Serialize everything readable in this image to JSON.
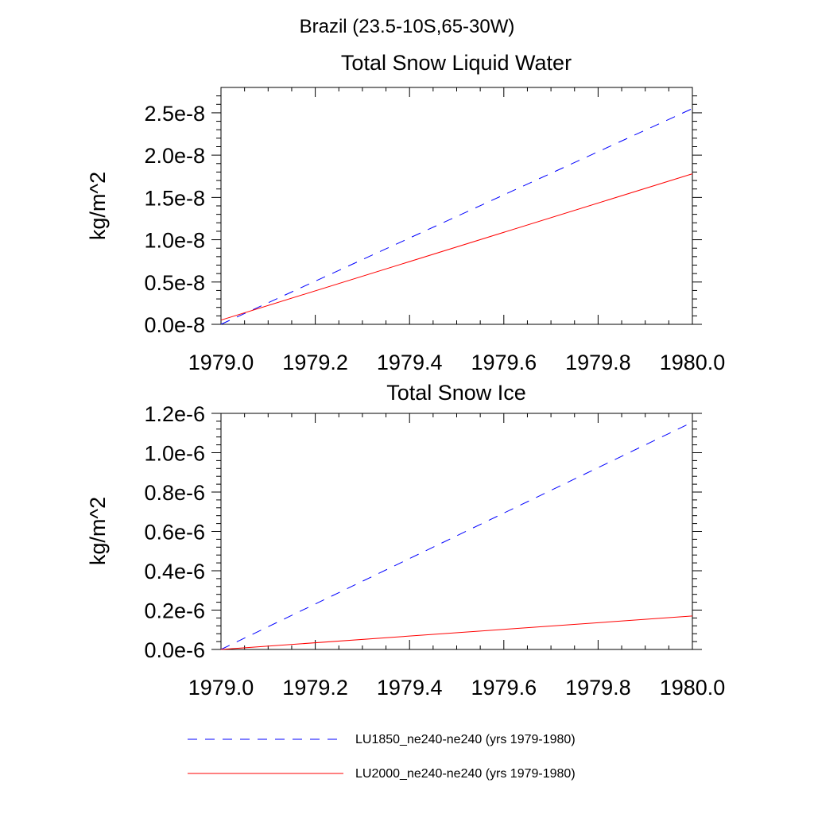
{
  "figure": {
    "title": "Brazil (23.5-10S,65-30W)"
  },
  "chart_data": [
    {
      "type": "line",
      "title": "Total Snow Liquid Water",
      "xlabel": "",
      "ylabel": "kg/m^2",
      "xlim": [
        1979.0,
        1980.0
      ],
      "ylim": [
        0.0,
        2.8e-08
      ],
      "xticks": [
        1979.0,
        1979.2,
        1979.4,
        1979.6,
        1979.8,
        1980.0
      ],
      "xtick_labels": [
        "1979.0",
        "1979.2",
        "1979.4",
        "1979.6",
        "1979.8",
        "1980.0"
      ],
      "yticks": [
        0.0,
        5e-09,
        1e-08,
        1.5e-08,
        2e-08,
        2.5e-08
      ],
      "ytick_labels": [
        "0.0e-8",
        "0.5e-8",
        "1.0e-8",
        "1.5e-8",
        "2.0e-8",
        "2.5e-8"
      ],
      "grid": false,
      "series": [
        {
          "name": "LU1850_ne240-ne240 (yrs 1979-1980)",
          "color": "#0000ff",
          "dash": "dashed",
          "x": [
            1979.0,
            1980.0
          ],
          "y": [
            0.0,
            2.55e-08
          ]
        },
        {
          "name": "LU2000_ne240-ne240 (yrs 1979-1980)",
          "color": "#ff0000",
          "dash": "solid",
          "x": [
            1979.0,
            1980.0
          ],
          "y": [
            5e-10,
            1.78e-08
          ]
        }
      ]
    },
    {
      "type": "line",
      "title": "Total Snow Ice",
      "xlabel": "",
      "ylabel": "kg/m^2",
      "xlim": [
        1979.0,
        1980.0
      ],
      "ylim": [
        0.0,
        1.2e-06
      ],
      "xticks": [
        1979.0,
        1979.2,
        1979.4,
        1979.6,
        1979.8,
        1980.0
      ],
      "xtick_labels": [
        "1979.0",
        "1979.2",
        "1979.4",
        "1979.6",
        "1979.8",
        "1980.0"
      ],
      "yticks": [
        0.0,
        2e-07,
        4e-07,
        6e-07,
        8e-07,
        1e-06,
        1.2e-06
      ],
      "ytick_labels": [
        "0.0e-6",
        "0.2e-6",
        "0.4e-6",
        "0.6e-6",
        "0.8e-6",
        "1.0e-6",
        "1.2e-6"
      ],
      "grid": false,
      "series": [
        {
          "name": "LU1850_ne240-ne240 (yrs 1979-1980)",
          "color": "#0000ff",
          "dash": "dashed",
          "x": [
            1979.0,
            1980.0
          ],
          "y": [
            0.0,
            1.155e-06
          ]
        },
        {
          "name": "LU2000_ne240-ne240 (yrs 1979-1980)",
          "color": "#ff0000",
          "dash": "solid",
          "x": [
            1979.0,
            1980.0
          ],
          "y": [
            0.0,
            1.7e-07
          ]
        }
      ]
    }
  ],
  "legend": {
    "placement": "bottom",
    "entries": [
      {
        "label": "LU1850_ne240-ne240 (yrs 1979-1980)",
        "color": "#0000ff",
        "dash": "dashed"
      },
      {
        "label": "LU2000_ne240-ne240 (yrs 1979-1980)",
        "color": "#ff0000",
        "dash": "solid"
      }
    ]
  }
}
